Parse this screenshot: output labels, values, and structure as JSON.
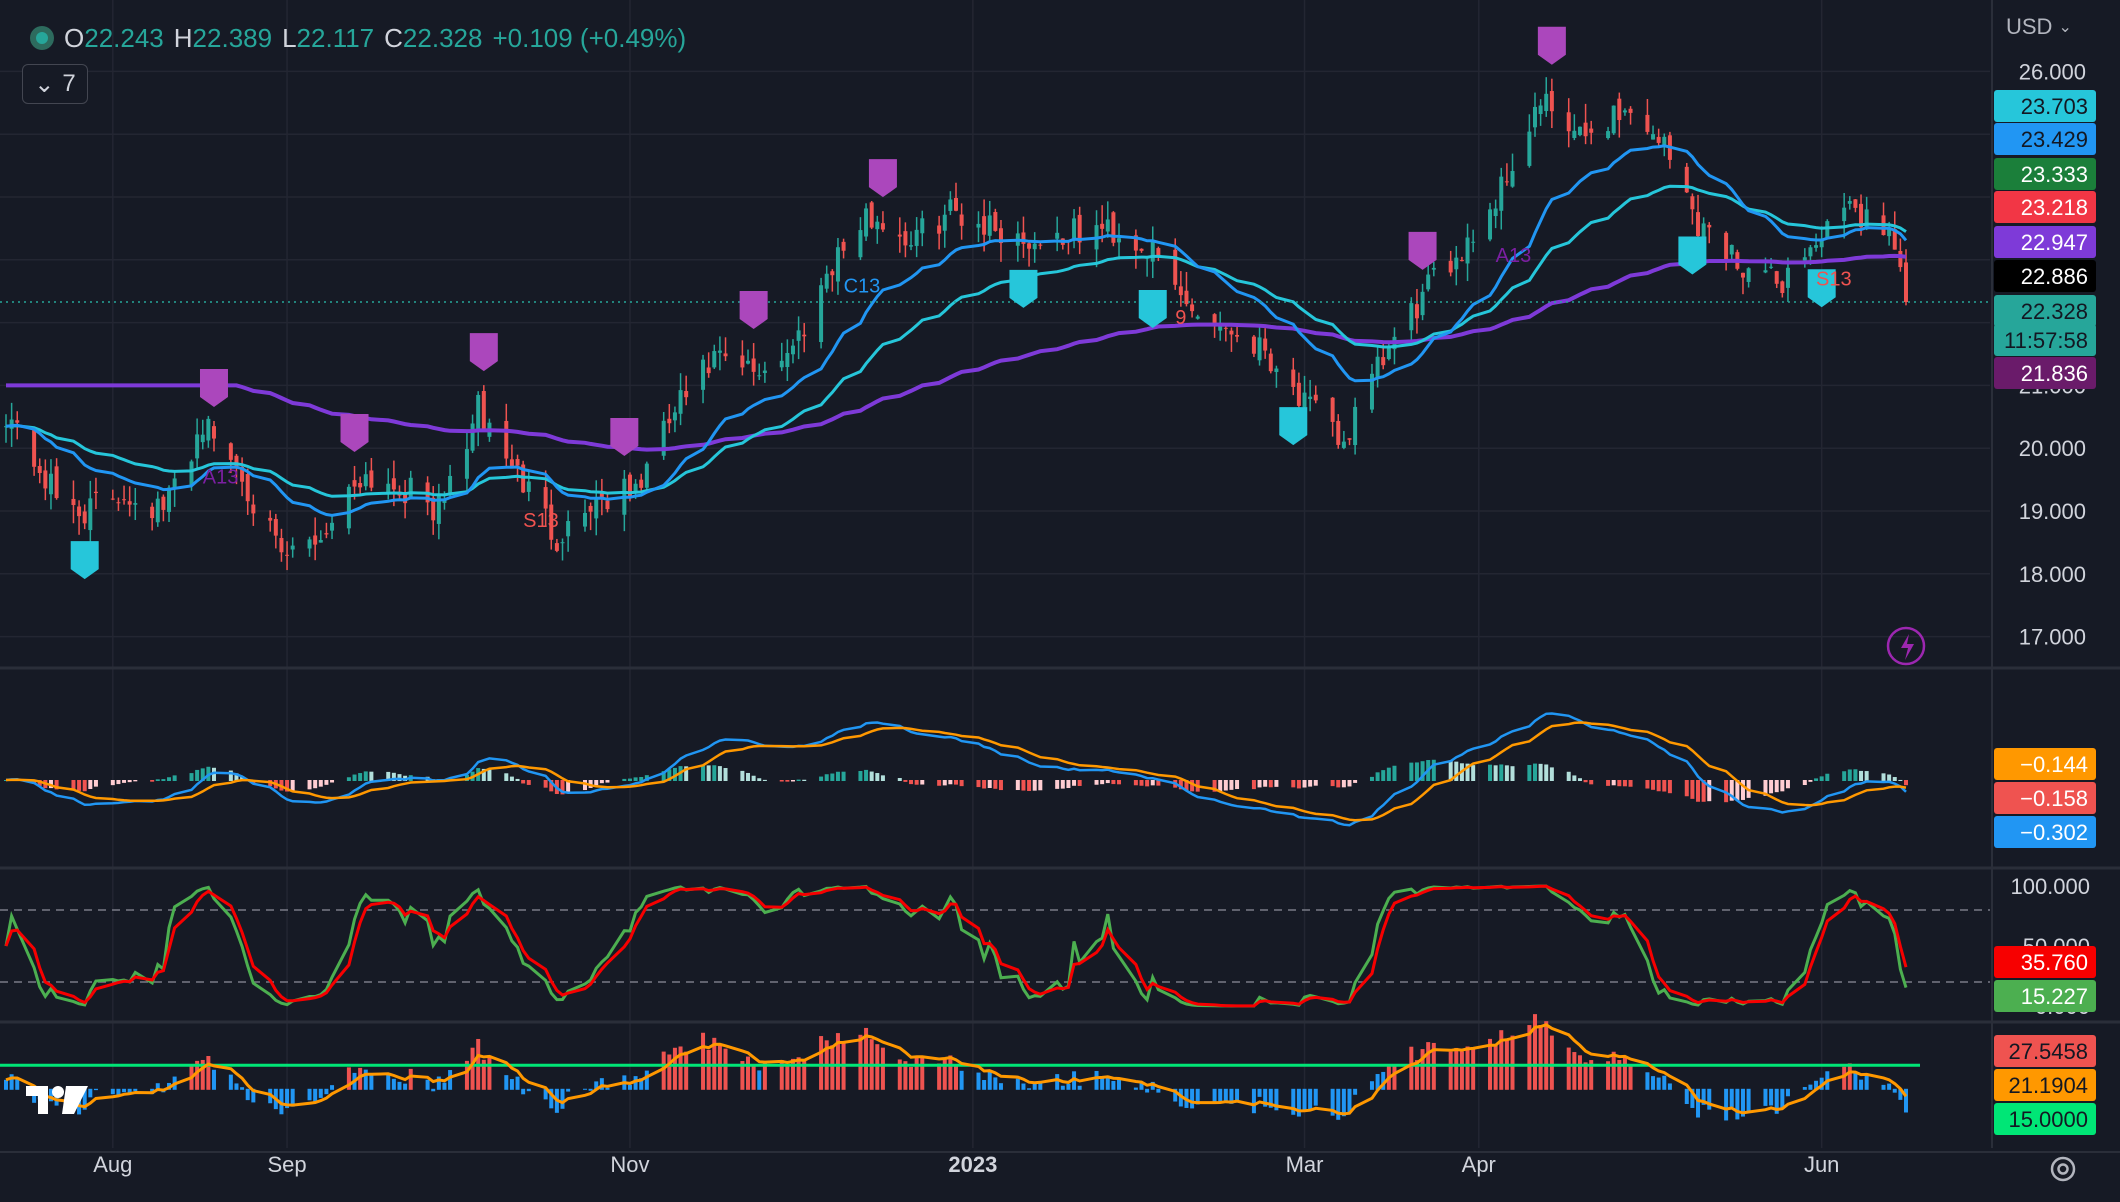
{
  "header": {
    "o_label": "O",
    "o_value": "22.243",
    "h_label": "H",
    "h_value": "22.389",
    "l_label": "L",
    "l_value": "22.117",
    "c_label": "C",
    "c_value": "22.328",
    "change": "+0.109 (+0.49%)"
  },
  "indicator_toggle": {
    "count": "7"
  },
  "currency": "USD",
  "colors": {
    "up": "#26a69a",
    "down": "#ef5350",
    "ema_fast": "#2196f3",
    "ema_mid": "#26c6da",
    "ema_slow": "#7e3ad8",
    "macd": "#2196f3",
    "signal": "#ff9800",
    "stoch_k": "#4caf50",
    "stoch_d": "#f70000",
    "mom_line": "#ff9800",
    "threshold": "#00e676"
  },
  "price_labels": [
    {
      "text": "23.703",
      "bg": "#26c6da",
      "fg": "#131722"
    },
    {
      "text": "23.429",
      "bg": "#2196f3",
      "fg": "#131722"
    },
    {
      "text": "23.333",
      "bg": "#1b7f3a",
      "fg": "#ffffff"
    },
    {
      "text": "23.218",
      "bg": "#f23645",
      "fg": "#ffffff"
    },
    {
      "text": "22.947",
      "bg": "#7e3ad8",
      "fg": "#ffffff"
    },
    {
      "text": "22.886",
      "bg": "#000000",
      "fg": "#ffffff"
    },
    {
      "text": "22.328",
      "bg": "#26a69a",
      "fg": "#131722"
    },
    {
      "text": "11:57:58",
      "bg": "#26a69a",
      "fg": "#131722"
    },
    {
      "text": "21.836",
      "bg": "#6a1b6a",
      "fg": "#ffffff"
    }
  ],
  "macd_labels": [
    {
      "text": "−0.144",
      "bg": "#ff9800",
      "fg": "#ffffff"
    },
    {
      "text": "−0.158",
      "bg": "#ef5350",
      "fg": "#ffffff"
    },
    {
      "text": "−0.302",
      "bg": "#2196f3",
      "fg": "#ffffff"
    }
  ],
  "stoch_labels": [
    {
      "text": "35.760",
      "bg": "#f70000",
      "fg": "#ffffff"
    },
    {
      "text": "15.227",
      "bg": "#4caf50",
      "fg": "#ffffff"
    }
  ],
  "mom_labels": [
    {
      "text": "27.5458",
      "bg": "#ef5350",
      "fg": "#131722"
    },
    {
      "text": "21.1904",
      "bg": "#ff9800",
      "fg": "#131722"
    },
    {
      "text": "15.0000",
      "bg": "#00e676",
      "fg": "#131722"
    }
  ],
  "signal_labels": [
    "A13",
    "S13",
    "C13",
    "9"
  ],
  "chart_data": {
    "type": "candlestick",
    "title": "",
    "x_ticks": [
      "Aug",
      "Sep",
      "Nov",
      "2023",
      "Mar",
      "Apr",
      "Jun"
    ],
    "y_ticks": [
      "26.000",
      "21.000",
      "20.000",
      "19.000",
      "18.000",
      "17.000"
    ],
    "stoch_ticks": [
      "100.000",
      "50.000",
      "0.000"
    ],
    "ylim": [
      16.5,
      26.5
    ],
    "anchors": [
      [
        "2022-07-13",
        20.6
      ],
      [
        "2022-07-22",
        19.2
      ],
      [
        "2022-07-27",
        19.0
      ],
      [
        "2022-08-03",
        19.3
      ],
      [
        "2022-08-10",
        19.0
      ],
      [
        "2022-08-17",
        20.4
      ],
      [
        "2022-08-24",
        19.6
      ],
      [
        "2022-08-31",
        18.2
      ],
      [
        "2022-09-07",
        18.6
      ],
      [
        "2022-09-14",
        19.6
      ],
      [
        "2022-09-21",
        19.4
      ],
      [
        "2022-09-28",
        19.0
      ],
      [
        "2022-10-05",
        20.6
      ],
      [
        "2022-10-12",
        19.6
      ],
      [
        "2022-10-19",
        18.6
      ],
      [
        "2022-10-26",
        19.2
      ],
      [
        "2022-11-02",
        19.3
      ],
      [
        "2022-11-09",
        20.6
      ],
      [
        "2022-11-16",
        21.4
      ],
      [
        "2022-11-23",
        21.2
      ],
      [
        "2022-11-30",
        21.6
      ],
      [
        "2022-12-07",
        23.0
      ],
      [
        "2022-12-14",
        23.7
      ],
      [
        "2022-12-21",
        23.3
      ],
      [
        "2022-12-28",
        23.8
      ],
      [
        "2023-01-11",
        23.3
      ],
      [
        "2023-01-25",
        23.5
      ],
      [
        "2023-02-01",
        23.2
      ],
      [
        "2023-02-08",
        22.3
      ],
      [
        "2023-02-22",
        21.6
      ],
      [
        "2023-03-01",
        20.7
      ],
      [
        "2023-03-08",
        20.1
      ],
      [
        "2023-03-15",
        21.4
      ],
      [
        "2023-03-22",
        22.4
      ],
      [
        "2023-04-03",
        23.8
      ],
      [
        "2023-04-12",
        25.5
      ],
      [
        "2023-04-19",
        24.9
      ],
      [
        "2023-04-26",
        25.4
      ],
      [
        "2023-05-03",
        25.0
      ],
      [
        "2023-05-10",
        23.6
      ],
      [
        "2023-05-17",
        23.0
      ],
      [
        "2023-05-24",
        22.6
      ],
      [
        "2023-05-31",
        23.3
      ],
      [
        "2023-06-07",
        23.8
      ],
      [
        "2023-06-14",
        23.4
      ],
      [
        "2023-06-16",
        22.4
      ]
    ],
    "ema_fast_last": 23.429,
    "ema_mid_last": 23.703,
    "ema_slow_last": 22.947,
    "last_close": 22.328,
    "macd_last": -0.302,
    "signal_last": -0.144,
    "hist_last": -0.158,
    "stoch_k_last": 15.227,
    "stoch_d_last": 35.76,
    "mom_last": 27.5458,
    "mom_signal_last": 21.1904,
    "mom_threshold": 15.0
  }
}
